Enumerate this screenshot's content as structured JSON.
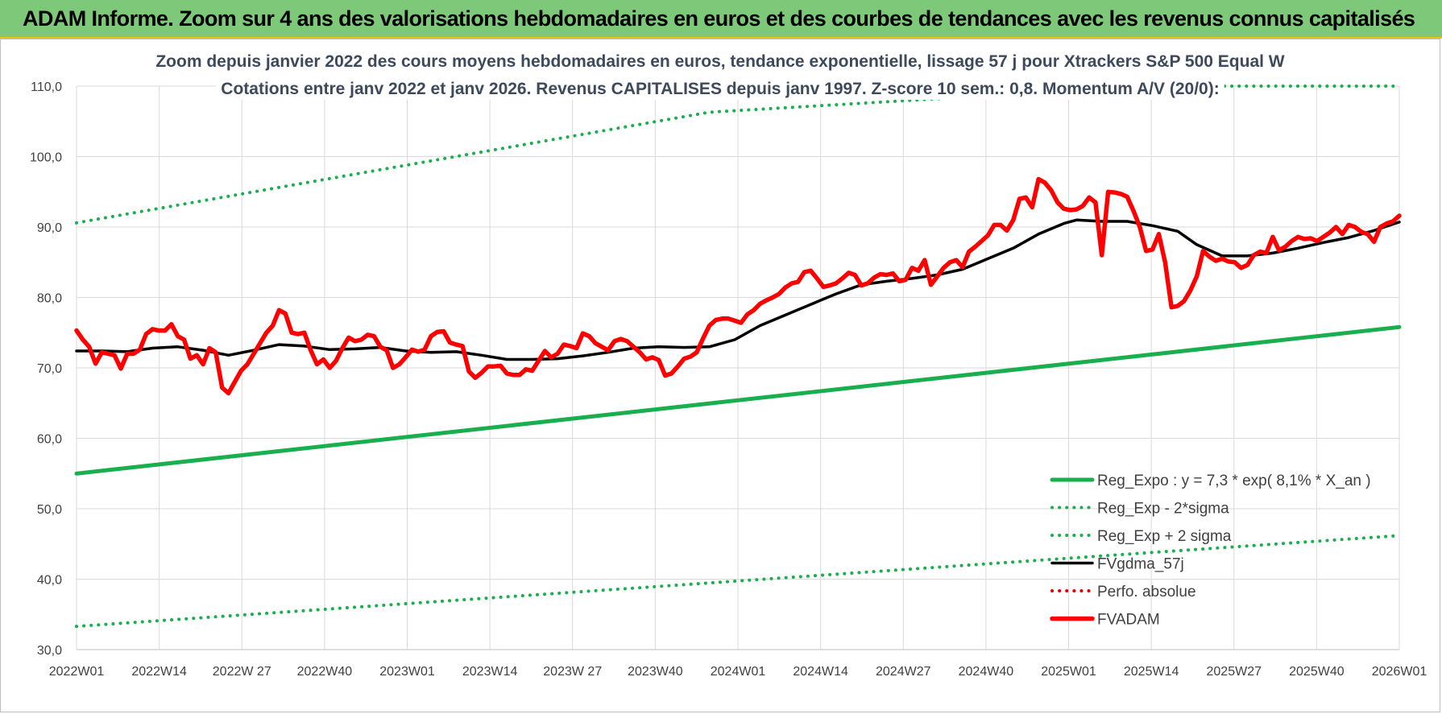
{
  "header": {
    "title": "ADAM Informe. Zoom sur 4 ans des valorisations hebdomadaires en euros et des courbes de tendances avec les revenus connus capitalisés"
  },
  "chart_data": {
    "type": "line",
    "subtitle_lines": [
      "Zoom depuis janvier 2022 des cours moyens hebdomadaires en euros, tendance exponentielle, lissage 57 j pour Xtrackers S&P 500 Equal W",
      "Cotations entre janv 2022 et janv 2026. Revenus CAPITALISES depuis janv 1997. Z-score 10 sem.: 0,8. Momentum A/V (20/0):"
    ],
    "x_tick_labels": [
      "2022W01",
      "2022W14",
      "2022W 27",
      "2022W40",
      "2023W01",
      "2023W14",
      "2023W 27",
      "2023W40",
      "2024W01",
      "2024W14",
      "2024W27",
      "2024W40",
      "2025W01",
      "2025W14",
      "2025W27",
      "2025W40",
      "2026W01"
    ],
    "y_tick_labels": [
      "30,0",
      "40,0",
      "50,0",
      "60,0",
      "70,0",
      "80,0",
      "90,0",
      "100,0",
      "110,0"
    ],
    "ylim": [
      30,
      110
    ],
    "x_range_weeks": [
      0,
      209
    ],
    "grid": true,
    "legend_position": "bottom-right",
    "series": [
      {
        "name": "Reg_Expo : y = 7,3 * exp( 8,1% *  X_an )",
        "style": "solid",
        "color": "#1aaf4e",
        "points": [
          [
            0,
            55.0
          ],
          [
            209,
            75.8
          ]
        ]
      },
      {
        "name": "Reg_Exp - 2*sigma",
        "style": "dotted",
        "color": "#1aaf4e",
        "points": [
          [
            0,
            33.3
          ],
          [
            209,
            46.2
          ]
        ]
      },
      {
        "name": "Reg_Exp + 2 sigma",
        "style": "dotted",
        "color": "#1aaf4e",
        "points": [
          [
            0,
            90.6
          ],
          [
            100,
            106.3
          ],
          [
            170,
            110
          ],
          [
            209,
            110
          ]
        ]
      },
      {
        "name": "FVgdma_57j",
        "style": "solid",
        "color": "#000000",
        "points": [
          [
            0,
            72.4
          ],
          [
            4,
            72.4
          ],
          [
            8,
            72.3
          ],
          [
            12,
            72.8
          ],
          [
            16,
            73.0
          ],
          [
            20,
            72.5
          ],
          [
            24,
            71.8
          ],
          [
            28,
            72.5
          ],
          [
            32,
            73.3
          ],
          [
            36,
            73.1
          ],
          [
            40,
            72.6
          ],
          [
            44,
            72.7
          ],
          [
            48,
            72.9
          ],
          [
            52,
            72.4
          ],
          [
            56,
            72.2
          ],
          [
            60,
            72.3
          ],
          [
            64,
            71.8
          ],
          [
            68,
            71.2
          ],
          [
            72,
            71.2
          ],
          [
            76,
            71.3
          ],
          [
            80,
            71.7
          ],
          [
            84,
            72.2
          ],
          [
            88,
            72.8
          ],
          [
            92,
            73.0
          ],
          [
            96,
            72.9
          ],
          [
            100,
            73.0
          ],
          [
            104,
            74.0
          ],
          [
            108,
            76.0
          ],
          [
            112,
            77.5
          ],
          [
            116,
            79.0
          ],
          [
            120,
            80.5
          ],
          [
            124,
            81.8
          ],
          [
            128,
            82.3
          ],
          [
            132,
            82.7
          ],
          [
            136,
            83.2
          ],
          [
            140,
            84.0
          ],
          [
            144,
            85.5
          ],
          [
            148,
            87.0
          ],
          [
            152,
            89.0
          ],
          [
            156,
            90.5
          ],
          [
            158,
            91.0
          ],
          [
            162,
            90.8
          ],
          [
            166,
            90.8
          ],
          [
            170,
            90.2
          ],
          [
            174,
            89.4
          ],
          [
            177,
            87.5
          ],
          [
            181,
            85.9
          ],
          [
            185,
            85.9
          ],
          [
            189,
            86.3
          ],
          [
            193,
            87.0
          ],
          [
            197,
            87.8
          ],
          [
            201,
            88.5
          ],
          [
            205,
            89.5
          ],
          [
            209,
            90.7
          ]
        ]
      },
      {
        "name": "Perfo. absolue",
        "style": "dotted",
        "color": "#e00000",
        "points": []
      },
      {
        "name": "FVADAM",
        "style": "solid",
        "color": "#ff0000",
        "points": [
          [
            0,
            75.3
          ],
          [
            1,
            74.0
          ],
          [
            2,
            73.0
          ],
          [
            3,
            70.6
          ],
          [
            4,
            72.2
          ],
          [
            5,
            72.0
          ],
          [
            6,
            71.8
          ],
          [
            7,
            69.9
          ],
          [
            8,
            72.0
          ],
          [
            9,
            72.0
          ],
          [
            10,
            72.6
          ],
          [
            11,
            74.8
          ],
          [
            12,
            75.5
          ],
          [
            13,
            75.3
          ],
          [
            14,
            75.3
          ],
          [
            15,
            76.2
          ],
          [
            16,
            74.5
          ],
          [
            17,
            74.0
          ],
          [
            18,
            71.3
          ],
          [
            19,
            71.8
          ],
          [
            20,
            70.5
          ],
          [
            21,
            72.8
          ],
          [
            22,
            72.2
          ],
          [
            23,
            67.2
          ],
          [
            24,
            66.4
          ],
          [
            25,
            68.0
          ],
          [
            26,
            69.6
          ],
          [
            27,
            70.5
          ],
          [
            28,
            72.0
          ],
          [
            29,
            73.5
          ],
          [
            30,
            75.0
          ],
          [
            31,
            76.0
          ],
          [
            32,
            78.2
          ],
          [
            33,
            77.7
          ],
          [
            34,
            75.0
          ],
          [
            35,
            74.8
          ],
          [
            36,
            75.0
          ],
          [
            37,
            72.5
          ],
          [
            38,
            70.5
          ],
          [
            39,
            71.2
          ],
          [
            40,
            70.0
          ],
          [
            41,
            71.0
          ],
          [
            42,
            72.8
          ],
          [
            43,
            74.3
          ],
          [
            44,
            73.8
          ],
          [
            45,
            74.0
          ],
          [
            46,
            74.7
          ],
          [
            47,
            74.5
          ],
          [
            48,
            73.0
          ],
          [
            49,
            72.5
          ],
          [
            50,
            70.0
          ],
          [
            51,
            70.5
          ],
          [
            52,
            71.5
          ],
          [
            53,
            72.6
          ],
          [
            54,
            72.3
          ],
          [
            55,
            72.6
          ],
          [
            56,
            74.5
          ],
          [
            57,
            75.1
          ],
          [
            58,
            75.2
          ],
          [
            59,
            73.6
          ],
          [
            60,
            73.3
          ],
          [
            61,
            73.1
          ],
          [
            62,
            69.5
          ],
          [
            63,
            68.6
          ],
          [
            64,
            69.3
          ],
          [
            65,
            70.2
          ],
          [
            66,
            70.2
          ],
          [
            67,
            70.3
          ],
          [
            68,
            69.2
          ],
          [
            69,
            69.0
          ],
          [
            70,
            69.0
          ],
          [
            71,
            69.8
          ],
          [
            72,
            69.6
          ],
          [
            73,
            71.0
          ],
          [
            74,
            72.4
          ],
          [
            75,
            71.5
          ],
          [
            76,
            72.0
          ],
          [
            77,
            73.3
          ],
          [
            78,
            73.1
          ],
          [
            79,
            72.8
          ],
          [
            80,
            74.9
          ],
          [
            81,
            74.5
          ],
          [
            82,
            73.5
          ],
          [
            83,
            73.0
          ],
          [
            84,
            72.5
          ],
          [
            85,
            73.8
          ],
          [
            86,
            74.1
          ],
          [
            87,
            73.8
          ],
          [
            88,
            73.0
          ],
          [
            89,
            72.2
          ],
          [
            90,
            71.2
          ],
          [
            91,
            71.5
          ],
          [
            92,
            71.1
          ],
          [
            93,
            68.9
          ],
          [
            94,
            69.2
          ],
          [
            95,
            70.2
          ],
          [
            96,
            71.3
          ],
          [
            97,
            71.6
          ],
          [
            98,
            72.2
          ],
          [
            99,
            74.2
          ],
          [
            100,
            76.0
          ],
          [
            101,
            76.8
          ],
          [
            102,
            77.0
          ],
          [
            103,
            77.0
          ],
          [
            104,
            76.7
          ],
          [
            105,
            76.4
          ],
          [
            106,
            77.6
          ],
          [
            107,
            78.2
          ],
          [
            108,
            79.1
          ],
          [
            109,
            79.6
          ],
          [
            110,
            80.0
          ],
          [
            111,
            80.5
          ],
          [
            112,
            81.4
          ],
          [
            113,
            82.0
          ],
          [
            114,
            82.2
          ],
          [
            115,
            83.6
          ],
          [
            116,
            83.8
          ],
          [
            117,
            82.7
          ],
          [
            118,
            81.5
          ],
          [
            119,
            81.7
          ],
          [
            120,
            82.0
          ],
          [
            121,
            82.7
          ],
          [
            122,
            83.5
          ],
          [
            123,
            83.2
          ],
          [
            124,
            81.7
          ],
          [
            125,
            82.0
          ],
          [
            126,
            82.8
          ],
          [
            127,
            83.3
          ],
          [
            128,
            83.2
          ],
          [
            129,
            83.4
          ],
          [
            130,
            82.3
          ],
          [
            131,
            82.5
          ],
          [
            132,
            84.2
          ],
          [
            133,
            83.8
          ],
          [
            134,
            85.3
          ],
          [
            135,
            81.8
          ],
          [
            136,
            83.0
          ],
          [
            137,
            84.2
          ],
          [
            138,
            85.0
          ],
          [
            139,
            85.3
          ],
          [
            140,
            84.3
          ],
          [
            141,
            86.5
          ],
          [
            142,
            87.2
          ],
          [
            143,
            88.0
          ],
          [
            144,
            88.8
          ],
          [
            145,
            90.3
          ],
          [
            146,
            90.3
          ],
          [
            147,
            89.5
          ],
          [
            148,
            91.0
          ],
          [
            149,
            94.0
          ],
          [
            150,
            94.2
          ],
          [
            151,
            92.8
          ],
          [
            152,
            96.8
          ],
          [
            153,
            96.3
          ],
          [
            154,
            95.2
          ],
          [
            155,
            93.5
          ],
          [
            156,
            92.6
          ],
          [
            157,
            92.4
          ],
          [
            158,
            92.5
          ],
          [
            159,
            93.0
          ],
          [
            160,
            94.2
          ],
          [
            161,
            93.5
          ],
          [
            162,
            86.0
          ],
          [
            163,
            95.0
          ],
          [
            164,
            94.9
          ],
          [
            165,
            94.7
          ],
          [
            166,
            94.3
          ],
          [
            167,
            92.3
          ],
          [
            168,
            90.0
          ],
          [
            169,
            86.6
          ],
          [
            170,
            86.8
          ],
          [
            171,
            89.0
          ],
          [
            172,
            85.0
          ],
          [
            173,
            78.6
          ],
          [
            174,
            78.8
          ],
          [
            175,
            79.5
          ],
          [
            176,
            81.0
          ],
          [
            177,
            83.0
          ],
          [
            178,
            86.6
          ],
          [
            179,
            85.8
          ],
          [
            180,
            85.2
          ],
          [
            181,
            85.5
          ],
          [
            182,
            85.1
          ],
          [
            183,
            85.0
          ],
          [
            184,
            84.2
          ],
          [
            185,
            84.6
          ],
          [
            186,
            86.0
          ],
          [
            187,
            86.5
          ],
          [
            188,
            86.3
          ],
          [
            189,
            88.6
          ],
          [
            190,
            86.7
          ],
          [
            191,
            87.2
          ],
          [
            192,
            88.0
          ],
          [
            193,
            88.6
          ],
          [
            194,
            88.3
          ],
          [
            195,
            88.4
          ],
          [
            196,
            88.0
          ],
          [
            197,
            88.6
          ],
          [
            198,
            89.2
          ],
          [
            199,
            90.0
          ],
          [
            200,
            89.0
          ],
          [
            201,
            90.3
          ],
          [
            202,
            90.0
          ],
          [
            203,
            89.3
          ],
          [
            204,
            89.0
          ],
          [
            205,
            87.9
          ],
          [
            206,
            90.0
          ],
          [
            207,
            90.5
          ],
          [
            208,
            90.8
          ],
          [
            209,
            91.6
          ]
        ]
      }
    ]
  }
}
